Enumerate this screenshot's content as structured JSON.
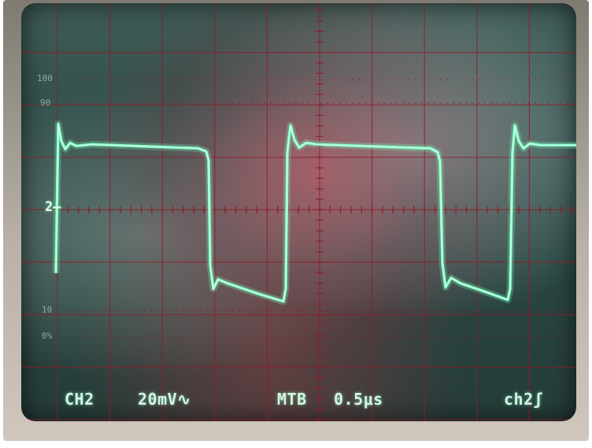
{
  "scope": {
    "readouts": {
      "channel": "CH2",
      "volts_per_div": "20mV∿",
      "timebase_label": "MTB",
      "time_per_div": "0.5μs",
      "trigger": "ch2ʃ"
    },
    "graticule_marks": {
      "pct100": "100",
      "pct90": "90",
      "pct10": "10",
      "pct0": "0%",
      "channel_marker": "2"
    },
    "waveform": {
      "shape": "square wave",
      "high_level_div": 2.0,
      "low_level_div": -2.2,
      "periods_visible": 2.75
    },
    "colors": {
      "trace": "#7dffc2",
      "grid": "#8c1d2a",
      "text": "#d8f3e4"
    }
  }
}
